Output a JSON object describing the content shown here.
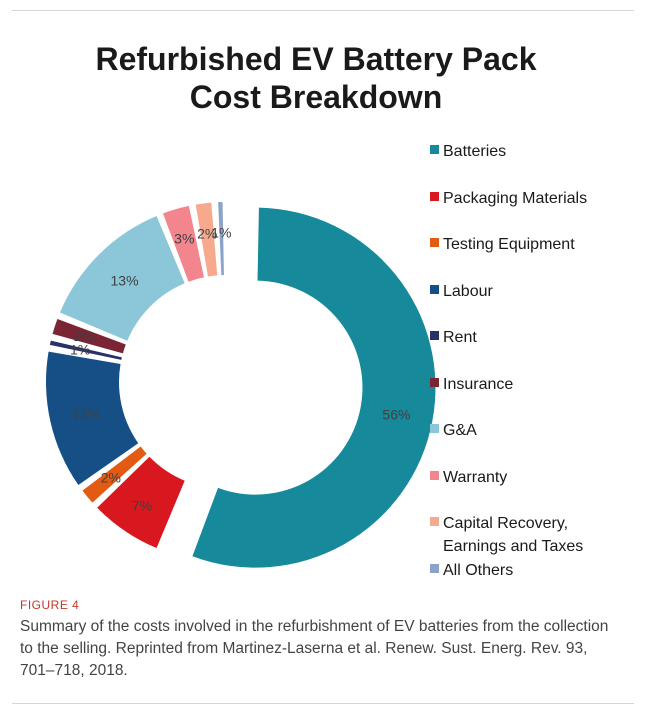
{
  "figure": {
    "label": "FIGURE 4",
    "caption": "Summary of the costs involved in the refurbishment of EV batteries from the collection to the selling. Reprinted from Martinez-Laserna et al. Renew. Sust. Energ. Rev. 93, 701–718, 2018."
  },
  "chart_data": {
    "type": "pie",
    "title": "Refurbished EV Battery Pack Cost Breakdown",
    "legend_position": "right",
    "slices": [
      {
        "label": "Batteries",
        "value": 56,
        "display": "56%",
        "color": "#16899a"
      },
      {
        "label": "Packaging Materials",
        "value": 7,
        "display": "7%",
        "color": "#d9171f"
      },
      {
        "label": "Testing Equipment",
        "value": 2,
        "display": "2%",
        "color": "#e35a13"
      },
      {
        "label": "Labour",
        "value": 13,
        "display": "13%",
        "color": "#164f86"
      },
      {
        "label": "Rent",
        "value": 1,
        "display": "1%",
        "color": "#2a3168"
      },
      {
        "label": "Insurance",
        "value": 2,
        "display": "2%",
        "color": "#7b2433"
      },
      {
        "label": "G&A",
        "value": 13,
        "display": "13%",
        "color": "#8cc7d9"
      },
      {
        "label": "Warranty",
        "value": 3,
        "display": "3%",
        "color": "#f2858d"
      },
      {
        "label": "Capital Recovery, Earnings and Taxes",
        "value": 2,
        "display": "2%",
        "color": "#f6a98d"
      },
      {
        "label": "All Others",
        "value": 1,
        "display": "1%",
        "color": "#8ca3c9"
      }
    ]
  }
}
